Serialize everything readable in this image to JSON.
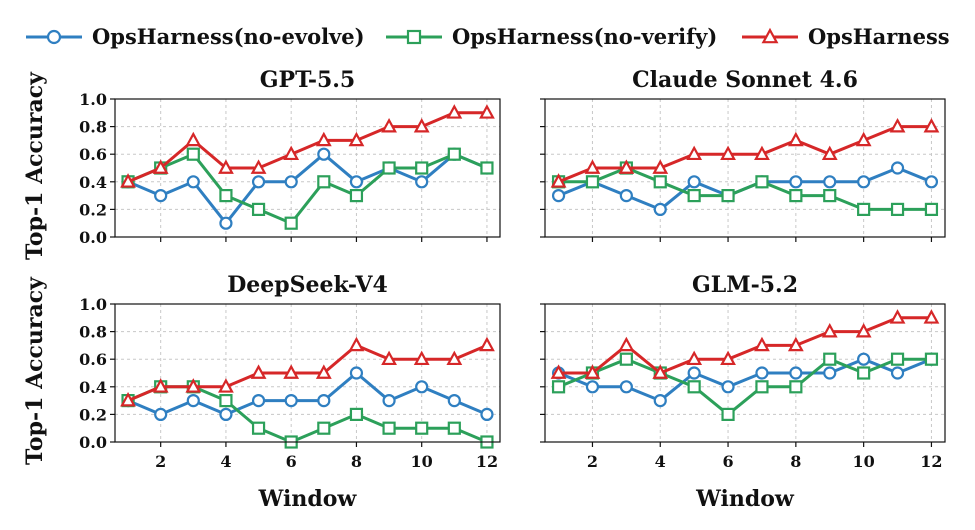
{
  "legend": {
    "items": [
      {
        "label": "OpsHarness(no-evolve)",
        "color": "#2f7fc1",
        "marker": "circle"
      },
      {
        "label": "OpsHarness(no-verify)",
        "color": "#2ca05a",
        "marker": "square"
      },
      {
        "label": "OpsHarness",
        "color": "#d62728",
        "marker": "triangle"
      }
    ]
  },
  "chart_data": [
    {
      "type": "line",
      "title": "GPT-5.5",
      "x": [
        1,
        2,
        3,
        4,
        5,
        6,
        7,
        8,
        9,
        10,
        11,
        12
      ],
      "xlabel": "",
      "ylabel": "Top-1 Accuracy",
      "xlim": [
        0.6,
        12.4
      ],
      "ylim": [
        0,
        1.0
      ],
      "xticks": [],
      "yticks": [
        "0.0",
        "0.2",
        "0.4",
        "0.6",
        "0.8",
        "1.0"
      ],
      "grid": true,
      "series": [
        {
          "name": "OpsHarness(no-evolve)",
          "values": [
            0.4,
            0.3,
            0.4,
            0.1,
            0.4,
            0.4,
            0.6,
            0.4,
            0.5,
            0.4,
            0.6,
            0.5
          ]
        },
        {
          "name": "OpsHarness(no-verify)",
          "values": [
            0.4,
            0.5,
            0.6,
            0.3,
            0.2,
            0.1,
            0.4,
            0.3,
            0.5,
            0.5,
            0.6,
            0.5
          ]
        },
        {
          "name": "OpsHarness",
          "values": [
            0.4,
            0.5,
            0.7,
            0.5,
            0.5,
            0.6,
            0.7,
            0.7,
            0.8,
            0.8,
            0.9,
            0.9
          ]
        }
      ]
    },
    {
      "type": "line",
      "title": "Claude Sonnet 4.6",
      "x": [
        1,
        2,
        3,
        4,
        5,
        6,
        7,
        8,
        9,
        10,
        11,
        12
      ],
      "xlabel": "",
      "ylabel": "",
      "xlim": [
        0.6,
        12.4
      ],
      "ylim": [
        0,
        1.0
      ],
      "xticks": [],
      "yticks": [],
      "grid": true,
      "series": [
        {
          "name": "OpsHarness(no-evolve)",
          "values": [
            0.3,
            0.4,
            0.3,
            0.2,
            0.4,
            0.3,
            0.4,
            0.4,
            0.4,
            0.4,
            0.5,
            0.4
          ]
        },
        {
          "name": "OpsHarness(no-verify)",
          "values": [
            0.4,
            0.4,
            0.5,
            0.4,
            0.3,
            0.3,
            0.4,
            0.3,
            0.3,
            0.2,
            0.2,
            0.2
          ]
        },
        {
          "name": "OpsHarness",
          "values": [
            0.4,
            0.5,
            0.5,
            0.5,
            0.6,
            0.6,
            0.6,
            0.7,
            0.6,
            0.7,
            0.8,
            0.8
          ]
        }
      ]
    },
    {
      "type": "line",
      "title": "DeepSeek-V4",
      "x": [
        1,
        2,
        3,
        4,
        5,
        6,
        7,
        8,
        9,
        10,
        11,
        12
      ],
      "xlabel": "Window",
      "ylabel": "Top-1 Accuracy",
      "xlim": [
        0.6,
        12.4
      ],
      "ylim": [
        0,
        1.0
      ],
      "xticks": [
        "2",
        "4",
        "6",
        "8",
        "10",
        "12"
      ],
      "yticks": [
        "0.0",
        "0.2",
        "0.4",
        "0.6",
        "0.8",
        "1.0"
      ],
      "grid": true,
      "series": [
        {
          "name": "OpsHarness(no-evolve)",
          "values": [
            0.3,
            0.2,
            0.3,
            0.2,
            0.3,
            0.3,
            0.3,
            0.5,
            0.3,
            0.4,
            0.3,
            0.2
          ]
        },
        {
          "name": "OpsHarness(no-verify)",
          "values": [
            0.3,
            0.4,
            0.4,
            0.3,
            0.1,
            0.0,
            0.1,
            0.2,
            0.1,
            0.1,
            0.1,
            0.0
          ]
        },
        {
          "name": "OpsHarness",
          "values": [
            0.3,
            0.4,
            0.4,
            0.4,
            0.5,
            0.5,
            0.5,
            0.7,
            0.6,
            0.6,
            0.6,
            0.7
          ]
        }
      ]
    },
    {
      "type": "line",
      "title": "GLM-5.2",
      "x": [
        1,
        2,
        3,
        4,
        5,
        6,
        7,
        8,
        9,
        10,
        11,
        12
      ],
      "xlabel": "Window",
      "ylabel": "",
      "xlim": [
        0.6,
        12.4
      ],
      "ylim": [
        0,
        1.0
      ],
      "xticks": [
        "2",
        "4",
        "6",
        "8",
        "10",
        "12"
      ],
      "yticks": [],
      "grid": true,
      "series": [
        {
          "name": "OpsHarness(no-evolve)",
          "values": [
            0.5,
            0.4,
            0.4,
            0.3,
            0.5,
            0.4,
            0.5,
            0.5,
            0.5,
            0.6,
            0.5,
            0.6
          ]
        },
        {
          "name": "OpsHarness(no-verify)",
          "values": [
            0.4,
            0.5,
            0.6,
            0.5,
            0.4,
            0.2,
            0.4,
            0.4,
            0.6,
            0.5,
            0.6,
            0.6
          ]
        },
        {
          "name": "OpsHarness",
          "values": [
            0.5,
            0.5,
            0.7,
            0.5,
            0.6,
            0.6,
            0.7,
            0.7,
            0.8,
            0.8,
            0.9,
            0.9
          ]
        }
      ]
    }
  ]
}
